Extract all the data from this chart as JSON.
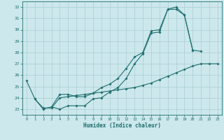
{
  "xlabel": "Humidex (Indice chaleur)",
  "bg_color": "#cce8ec",
  "grid_color": "#aacdd4",
  "line_color": "#1e6e6e",
  "xlim": [
    -0.5,
    23.5
  ],
  "ylim": [
    22.5,
    32.5
  ],
  "xticks": [
    0,
    1,
    2,
    3,
    4,
    5,
    6,
    7,
    8,
    9,
    10,
    11,
    12,
    13,
    14,
    15,
    16,
    17,
    18,
    19,
    20,
    21,
    22,
    23
  ],
  "yticks": [
    23,
    24,
    25,
    26,
    27,
    28,
    29,
    30,
    31,
    32
  ],
  "line1_x": [
    0,
    1,
    2,
    3,
    4,
    5,
    6,
    7,
    8,
    9,
    10,
    11,
    12,
    13,
    14,
    15,
    16,
    17,
    18,
    19,
    20,
    21
  ],
  "line1_y": [
    25.5,
    23.9,
    23.0,
    23.2,
    23.0,
    23.3,
    23.3,
    23.3,
    23.9,
    24.0,
    24.5,
    24.9,
    25.7,
    27.0,
    27.9,
    29.7,
    29.8,
    31.8,
    31.8,
    31.3,
    28.2,
    28.1
  ],
  "line2_x": [
    3,
    4,
    5,
    6,
    7,
    8,
    9,
    10,
    11,
    12,
    13,
    14,
    15,
    16,
    17,
    18,
    19,
    20
  ],
  "line2_y": [
    23.2,
    24.3,
    24.3,
    24.1,
    24.1,
    24.4,
    24.9,
    25.2,
    25.7,
    26.6,
    27.6,
    28.0,
    29.9,
    30.0,
    31.8,
    32.0,
    31.3,
    28.2
  ],
  "line3_x": [
    1,
    2,
    3,
    4,
    5,
    6,
    7,
    8,
    9,
    10,
    11,
    12,
    13,
    14,
    15,
    16,
    17,
    18,
    19,
    20,
    21,
    22,
    23
  ],
  "line3_y": [
    23.9,
    23.1,
    23.1,
    24.0,
    24.1,
    24.2,
    24.3,
    24.4,
    24.5,
    24.6,
    24.7,
    24.8,
    24.9,
    25.1,
    25.3,
    25.6,
    25.9,
    26.2,
    26.5,
    26.8,
    27.0,
    27.0,
    27.0
  ]
}
